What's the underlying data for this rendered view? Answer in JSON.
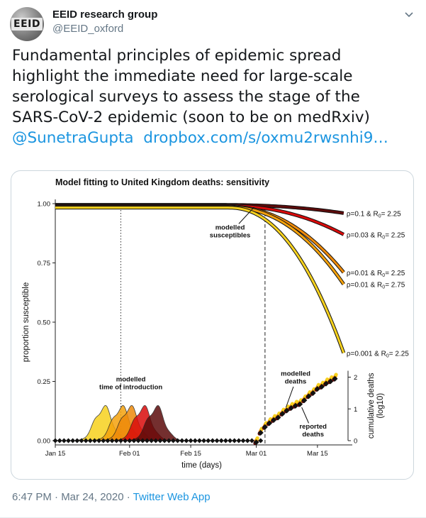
{
  "tweet": {
    "author": {
      "name": "EEID research group",
      "handle": "@EEID_oxford",
      "avatar_text": "EEID"
    },
    "text_lines": [
      "Fundamental principles of epidemic spread",
      "highlight the immediate need for large-scale",
      "serological surveys to assess the stage of the",
      "SARS-CoV-2 epidemic (soon to be on medRxiv)"
    ],
    "mention": "@SunetraGupta",
    "link": "dropbox.com/s/oxmu2rwsnhi9…",
    "timestamp": "6:47 PM · Mar 24, 2020 · ",
    "source_app": "Twitter Web App",
    "colors": {
      "link": "#1b95e0",
      "meta": "#657786",
      "text": "#14171a"
    }
  },
  "chart_data": {
    "type": "line",
    "title": "Model fitting to United Kingdom deaths: sensitivity",
    "xlabel": "time (days)",
    "ylabel": "proportion susceptible",
    "y2label_line1": "cumulative deaths",
    "y2label_line2": "(log10)",
    "x_ticks": [
      "Jan 15",
      "Feb 01",
      "Feb 15",
      "Mar 01",
      "Mar 15"
    ],
    "x_tick_days": [
      0,
      17,
      31,
      46,
      60
    ],
    "y_ticks": [
      "0.00",
      "0.25",
      "0.50",
      "0.75",
      "1.00"
    ],
    "y_tick_values": [
      0,
      0.25,
      0.5,
      0.75,
      1.0
    ],
    "y2_ticks": [
      "0",
      "1",
      "2"
    ],
    "ylim": [
      0,
      1
    ],
    "xlim": [
      0,
      67
    ],
    "series": [
      {
        "name": "ρ=0.1 & R0= 2.25",
        "label_rho": "ρ=0.1",
        "label_R": "= 2.25",
        "color": "#5c0b0b",
        "end_day": 66,
        "end_value": 0.96
      },
      {
        "name": "ρ=0.03 & R0= 2.25",
        "label_rho": "ρ=0.03",
        "label_R": "= 2.25",
        "color": "#d90b0b",
        "end_day": 66,
        "end_value": 0.87
      },
      {
        "name": "ρ=0.01 & R0= 2.25",
        "label_rho": "ρ=0.01",
        "label_R": "= 2.25",
        "color": "#ee8a0a",
        "end_day": 66,
        "end_value": 0.71
      },
      {
        "name": "ρ=0.01 & R0= 2.75",
        "label_rho": "ρ=0.01",
        "label_R": "= 2.75",
        "color": "#f4a20c",
        "end_day": 66,
        "end_value": 0.66
      },
      {
        "name": "ρ=0.001 & R0= 2.25",
        "label_rho": "ρ=0.001",
        "label_R": "= 2.25",
        "color": "#f7d21e",
        "end_day": 66,
        "end_value": 0.37
      }
    ],
    "introduction_peaks_day": [
      11,
      15,
      17,
      20,
      23
    ],
    "introduction_peak_height": 0.14,
    "annotations": {
      "susceptibles": [
        "modelled",
        "susceptibles"
      ],
      "introduction": [
        "modelled",
        "time of introduction"
      ],
      "deaths_modelled": [
        "modelled",
        "deaths"
      ],
      "deaths_reported": [
        "reported",
        "deaths"
      ],
      "intro_line_day": 15,
      "data_start_line_day": 48
    },
    "cumulative_deaths_log10": [
      {
        "day": 46,
        "value": 0.0
      },
      {
        "day": 47,
        "value": 0.3
      },
      {
        "day": 48,
        "value": 0.48
      },
      {
        "day": 49,
        "value": 0.6
      },
      {
        "day": 50,
        "value": 0.7
      },
      {
        "day": 51,
        "value": 0.78
      },
      {
        "day": 52,
        "value": 0.9
      },
      {
        "day": 53,
        "value": 1.0
      },
      {
        "day": 54,
        "value": 1.08
      },
      {
        "day": 55,
        "value": 1.15
      },
      {
        "day": 56,
        "value": 1.2
      },
      {
        "day": 57,
        "value": 1.32
      },
      {
        "day": 58,
        "value": 1.45
      },
      {
        "day": 59,
        "value": 1.55
      },
      {
        "day": 60,
        "value": 1.68
      },
      {
        "day": 61,
        "value": 1.75
      },
      {
        "day": 62,
        "value": 1.85
      },
      {
        "day": 63,
        "value": 1.92
      },
      {
        "day": 64,
        "value": 2.0
      }
    ]
  }
}
